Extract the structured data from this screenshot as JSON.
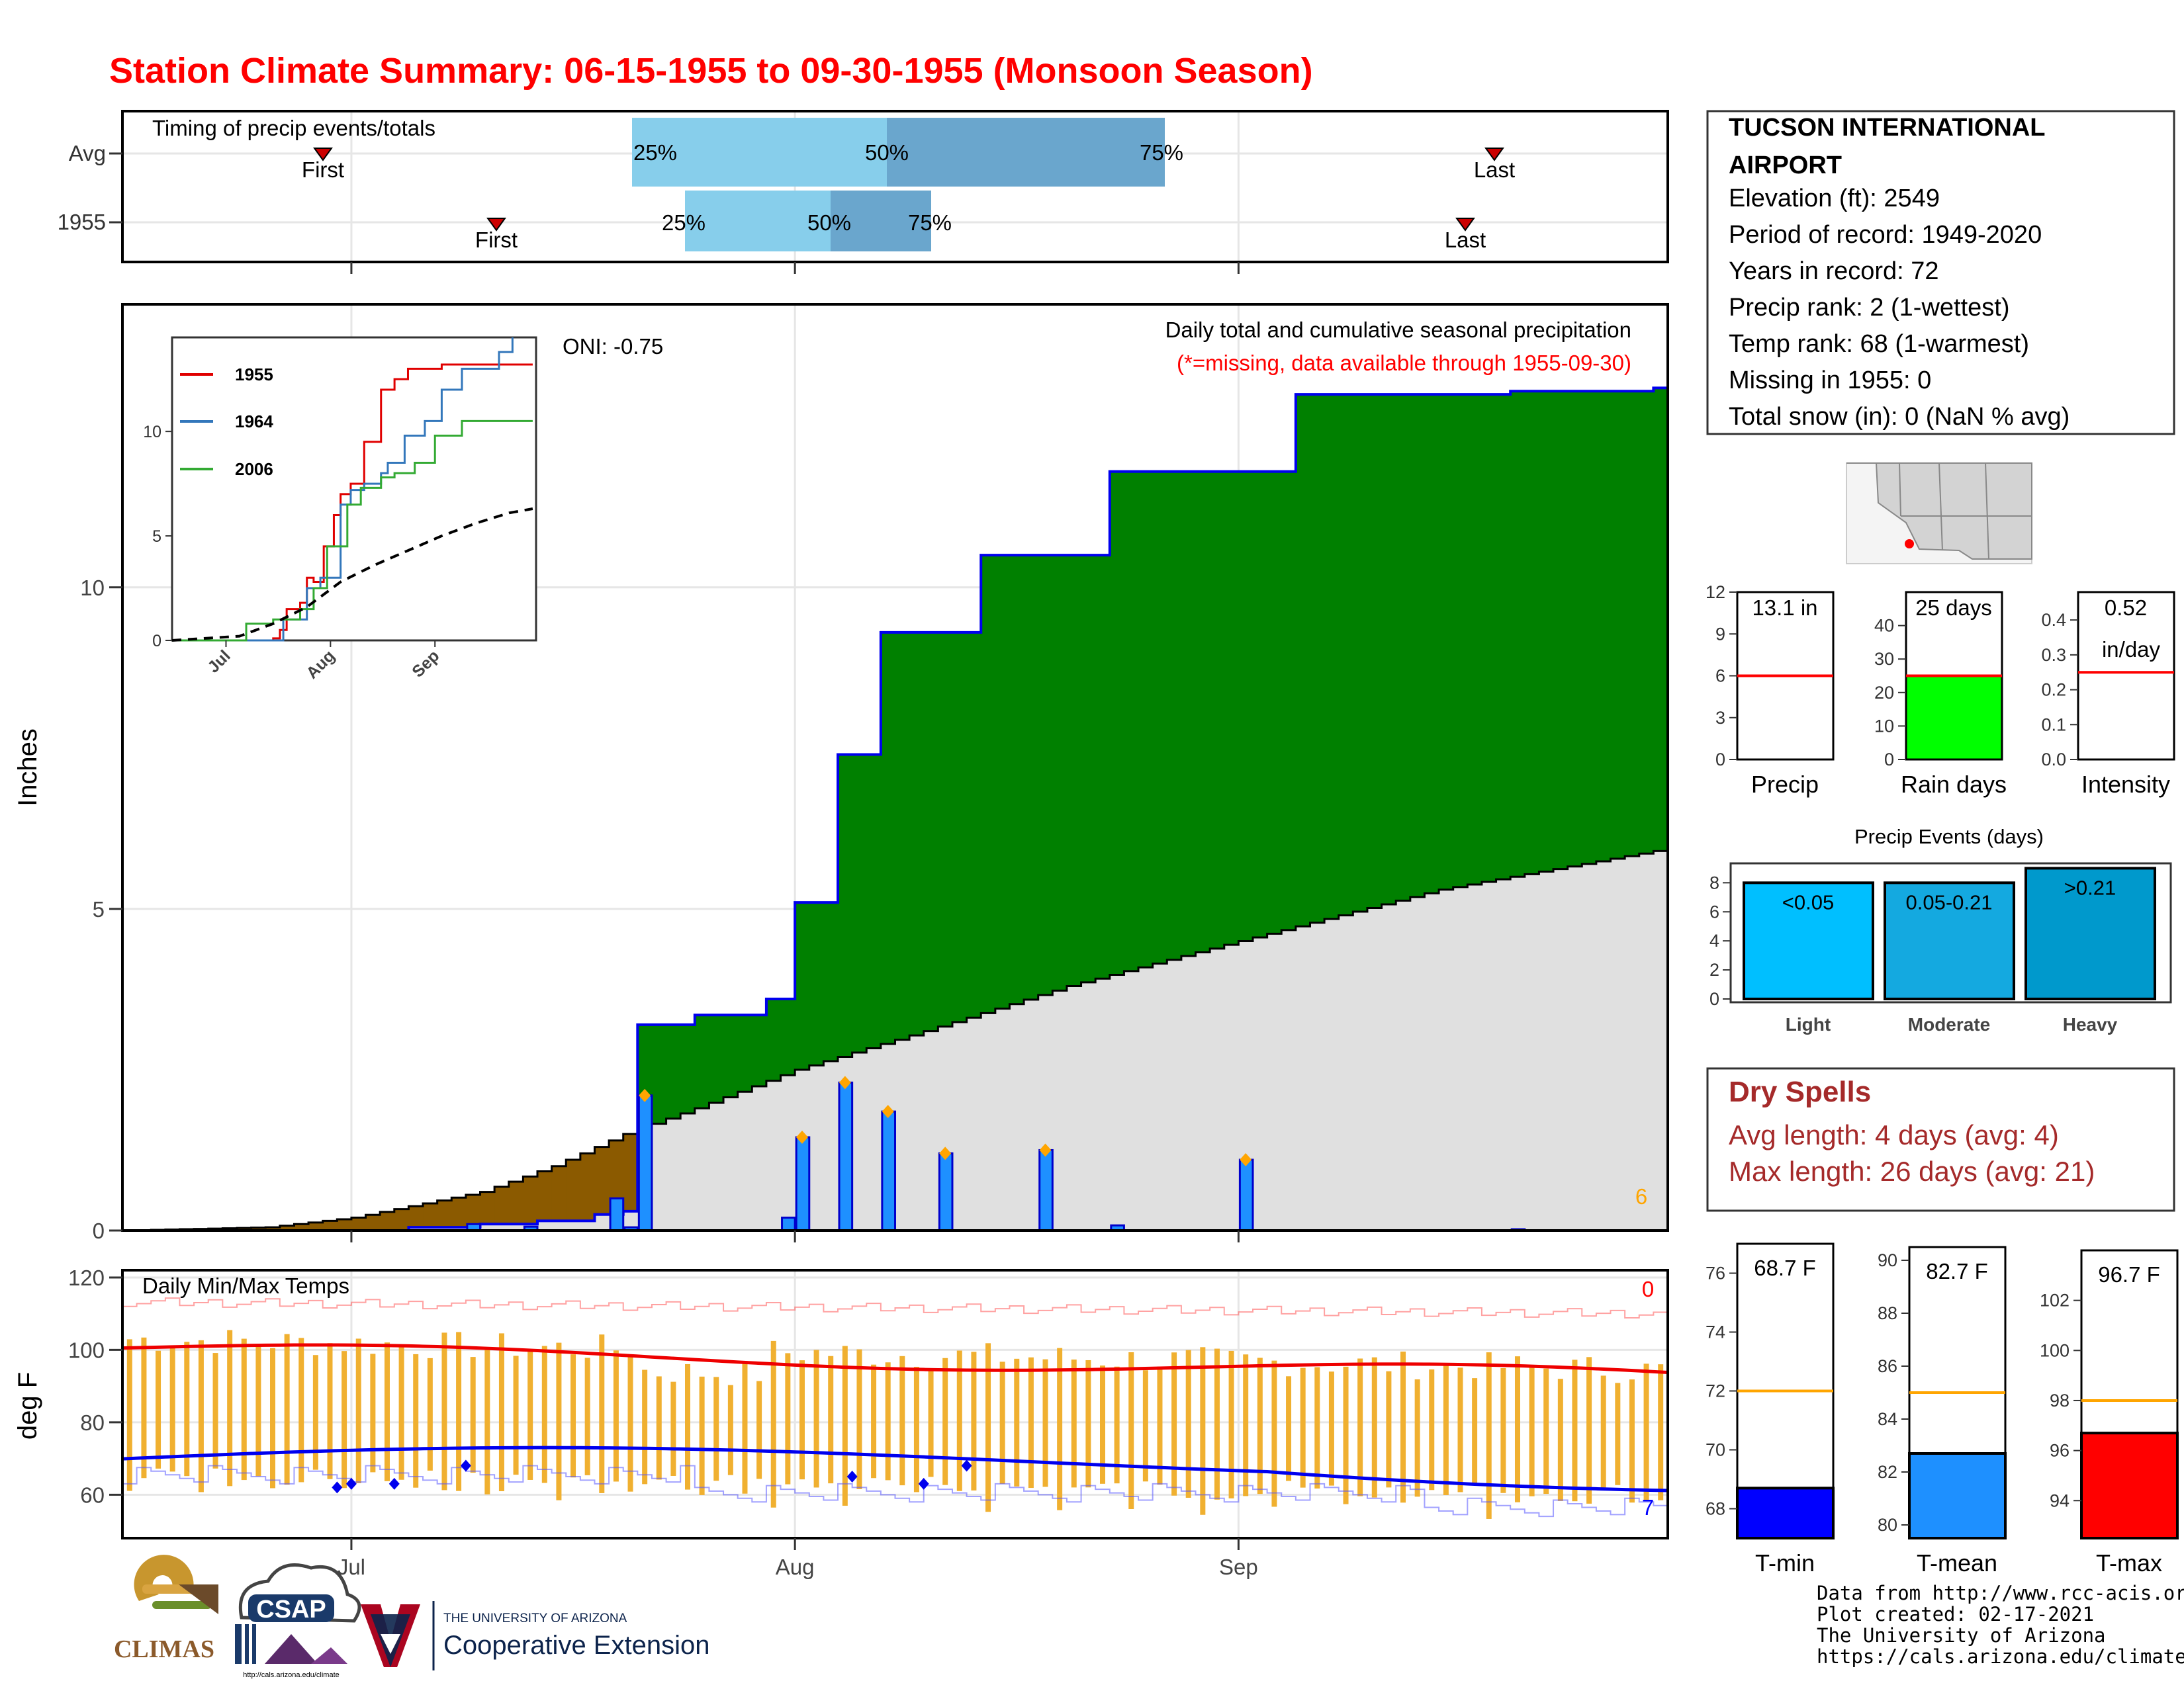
{
  "title": "Station Climate Summary: 06-15-1955 to 09-30-1955 (Monsoon Season)",
  "colors": {
    "title": "#ff0000",
    "precip_green": "#008000",
    "deficit_brown": "#8b5a00",
    "normal_gray": "#e0e0e0",
    "daily_bar": "#1e90ff",
    "temp_bar": "#f0b030",
    "max_line": "#ff0000",
    "min_line": "#0000ff",
    "dry_spells": "#a52a2a"
  },
  "timing": {
    "title": "Timing of precip events/totals",
    "rows": [
      {
        "label": "Avg",
        "first": "First",
        "last": "Last",
        "p25": "25%",
        "p50": "50%",
        "p75": "75%"
      },
      {
        "label": "1955",
        "first": "First",
        "last": "Last",
        "p25": "25%",
        "p50": "50%",
        "p75": "75%"
      }
    ]
  },
  "main_chart": {
    "ylabel": "Inches",
    "oni": "ONI: -0.75",
    "subtitle": "Daily total and cumulative seasonal precipitation",
    "missing_note": "(*=missing, data available through 1955-09-30)",
    "corner_count": "6",
    "yticks": [
      "0",
      "5",
      "10"
    ],
    "xticks": [
      "Jul",
      "Aug",
      "Sep"
    ]
  },
  "inset": {
    "series": [
      "1955",
      "1964",
      "2006"
    ],
    "yticks": [
      "0",
      "5",
      "10"
    ],
    "xticks": [
      "Jul",
      "Aug",
      "Sep"
    ]
  },
  "temps": {
    "title": "Daily Min/Max Temps",
    "ylabel": "deg F",
    "yticks": [
      "60",
      "80",
      "100",
      "120"
    ],
    "xticks": [
      "Jul",
      "Aug",
      "Sep"
    ],
    "count_top": "0",
    "count_bottom": "7"
  },
  "station": {
    "name_line1": "TUCSON INTERNATIONAL",
    "name_line2": "AIRPORT",
    "elevation": "Elevation (ft): 2549",
    "period": "Period of record: 1949-2020",
    "years": "Years in record: 72",
    "precip_rank": "Precip rank: 2 (1-wettest)",
    "temp_rank": "Temp rank: 68 (1-warmest)",
    "missing": "Missing in 1955: 0",
    "snow": "Total snow (in): 0 (NaN % avg)"
  },
  "mini_precip": {
    "precip": {
      "label": "Precip",
      "value_text": "13.1 in",
      "value": 13.1,
      "avg": 6,
      "yticks": [
        "0",
        "3",
        "6",
        "9",
        "12"
      ]
    },
    "rain_days": {
      "label": "Rain days",
      "value_text": "25 days",
      "value": 25,
      "avg": 25,
      "yticks": [
        "0",
        "10",
        "20",
        "30",
        "40"
      ]
    },
    "intensity": {
      "label": "Intensity",
      "value_text_1": "0.52",
      "value_text_2": "in/day",
      "value": 0.52,
      "avg": 0.25,
      "yticks": [
        "0.0",
        "0.1",
        "0.2",
        "0.3",
        "0.4"
      ]
    }
  },
  "precip_events": {
    "title": "Precip Events (days)",
    "yticks": [
      "0",
      "2",
      "4",
      "6",
      "8"
    ],
    "bars": [
      {
        "label": "Light",
        "range": "<0.05",
        "value": 8
      },
      {
        "label": "Moderate",
        "range": "0.05-0.21",
        "value": 8
      },
      {
        "label": "Heavy",
        "range": ">0.21",
        "value": 9
      }
    ]
  },
  "dry_spells": {
    "title": "Dry Spells",
    "avg": "Avg length: 4 days (avg: 4)",
    "max": "Max length: 26 days (avg: 21)"
  },
  "temp_summary": {
    "tmin": {
      "label": "T-min",
      "value_text": "68.7 F",
      "value": 68.7,
      "avg": 72,
      "yticks": [
        "68",
        "70",
        "72",
        "74",
        "76"
      ]
    },
    "tmean": {
      "label": "T-mean",
      "value_text": "82.7 F",
      "value": 82.7,
      "avg": 85,
      "yticks": [
        "80",
        "82",
        "84",
        "86",
        "88",
        "90"
      ]
    },
    "tmax": {
      "label": "T-max",
      "value_text": "96.7 F",
      "value": 96.7,
      "avg": 98,
      "yticks": [
        "94",
        "96",
        "98",
        "100",
        "102"
      ]
    }
  },
  "footer": {
    "line1": "Data from http://www.rcc-acis.org/",
    "line2": "Plot created: 02-17-2021",
    "line3": "The University of Arizona",
    "line4": "https://cals.arizona.edu/climate/",
    "ua_small": "THE UNIVERSITY OF ARIZONA",
    "ua_big": "Cooperative Extension",
    "climas": "CLIMAS",
    "csap": "CSAP",
    "csap_url": "http://cals.arizona.edu/climate"
  },
  "chart_data": {
    "type": "area",
    "title": "Daily total and cumulative seasonal precipitation",
    "ylabel": "Inches",
    "ylim": [
      0,
      13.5
    ],
    "x_start": "1955-06-15",
    "x_end": "1955-09-30",
    "cumulative_1955": [
      [
        "06-15",
        0
      ],
      [
        "07-05",
        0.05
      ],
      [
        "07-10",
        0.1
      ],
      [
        "07-14",
        0.15
      ],
      [
        "07-18",
        0.25
      ],
      [
        "07-20",
        0.3
      ],
      [
        "07-21",
        3.2
      ],
      [
        "07-25",
        3.35
      ],
      [
        "07-30",
        3.6
      ],
      [
        "08-01",
        5.1
      ],
      [
        "08-04",
        7.4
      ],
      [
        "08-07",
        9.3
      ],
      [
        "08-14",
        10.5
      ],
      [
        "08-23",
        11.8
      ],
      [
        "09-05",
        13.0
      ],
      [
        "09-20",
        13.05
      ],
      [
        "09-30",
        13.1
      ]
    ],
    "normal_cumulative": [
      [
        "06-15",
        0
      ],
      [
        "06-25",
        0.05
      ],
      [
        "07-01",
        0.2
      ],
      [
        "07-10",
        0.6
      ],
      [
        "07-15",
        1.0
      ],
      [
        "07-20",
        1.5
      ],
      [
        "07-25",
        1.9
      ],
      [
        "08-01",
        2.5
      ],
      [
        "08-10",
        3.1
      ],
      [
        "08-20",
        3.8
      ],
      [
        "09-01",
        4.5
      ],
      [
        "09-15",
        5.3
      ],
      [
        "09-30",
        5.9
      ]
    ],
    "daily_precip": [
      [
        "07-09",
        0.1
      ],
      [
        "07-13",
        0.06
      ],
      [
        "07-19",
        0.5
      ],
      [
        "07-20",
        0.05
      ],
      [
        "07-21",
        2.1
      ],
      [
        "07-31",
        0.2
      ],
      [
        "08-01",
        1.45
      ],
      [
        "08-04",
        2.3
      ],
      [
        "08-07",
        1.85
      ],
      [
        "08-11",
        1.2
      ],
      [
        "08-18",
        1.25
      ],
      [
        "08-23",
        0.08
      ],
      [
        "09-01",
        1.1
      ],
      [
        "09-20",
        0.02
      ]
    ]
  }
}
